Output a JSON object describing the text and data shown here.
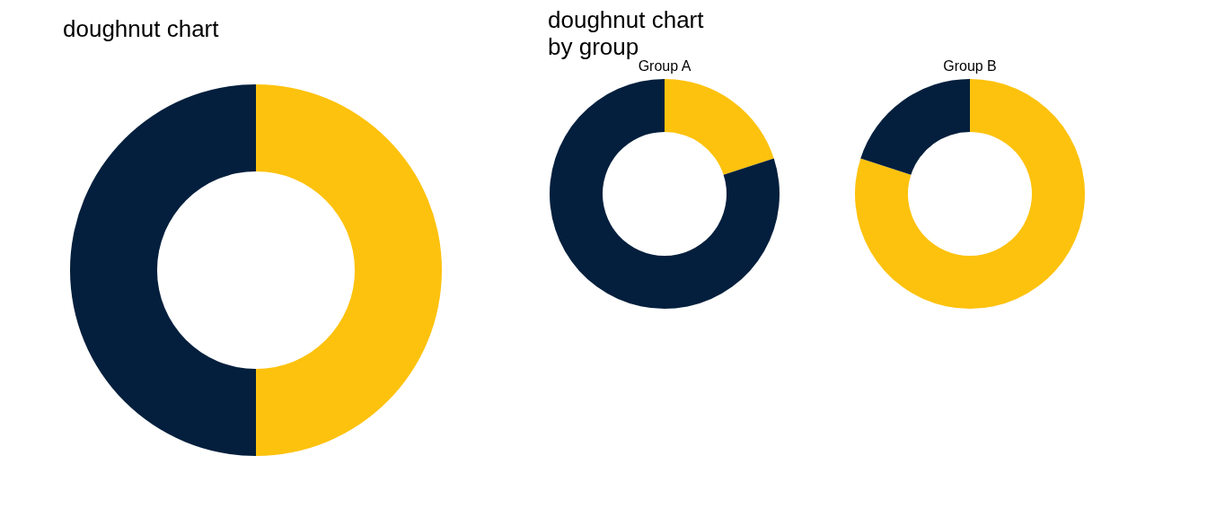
{
  "chart_data": [
    {
      "type": "donut",
      "title": "doughnut chart",
      "categories": [
        null,
        null
      ],
      "values": [
        50,
        50
      ],
      "colors": [
        "#fdc20d",
        "#031f3d"
      ]
    },
    {
      "type": "donut",
      "title": "doughnut chart\nby group",
      "subtitle": "Group A",
      "categories": [
        null,
        null
      ],
      "values": [
        20,
        80
      ],
      "colors": [
        "#fdc20d",
        "#031f3d"
      ]
    },
    {
      "type": "donut",
      "subtitle": "Group B",
      "categories": [
        null,
        null
      ],
      "values": [
        80,
        20
      ],
      "colors": [
        "#fdc20d",
        "#031f3d"
      ]
    }
  ]
}
